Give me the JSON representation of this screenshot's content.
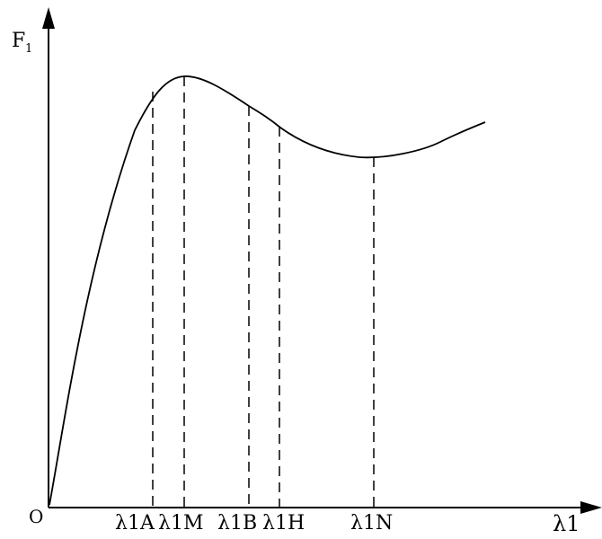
{
  "diagram": {
    "y_axis_label": "F",
    "y_axis_subscript": "1",
    "x_axis_label": "λ1",
    "origin_label": "O",
    "markers": [
      {
        "label": "λ1A"
      },
      {
        "label": "λ1M"
      },
      {
        "label": "λ1B"
      },
      {
        "label": "λ1H"
      },
      {
        "label": "λ1N"
      }
    ]
  },
  "colors": {
    "line": "#000000",
    "background": "#ffffff"
  }
}
